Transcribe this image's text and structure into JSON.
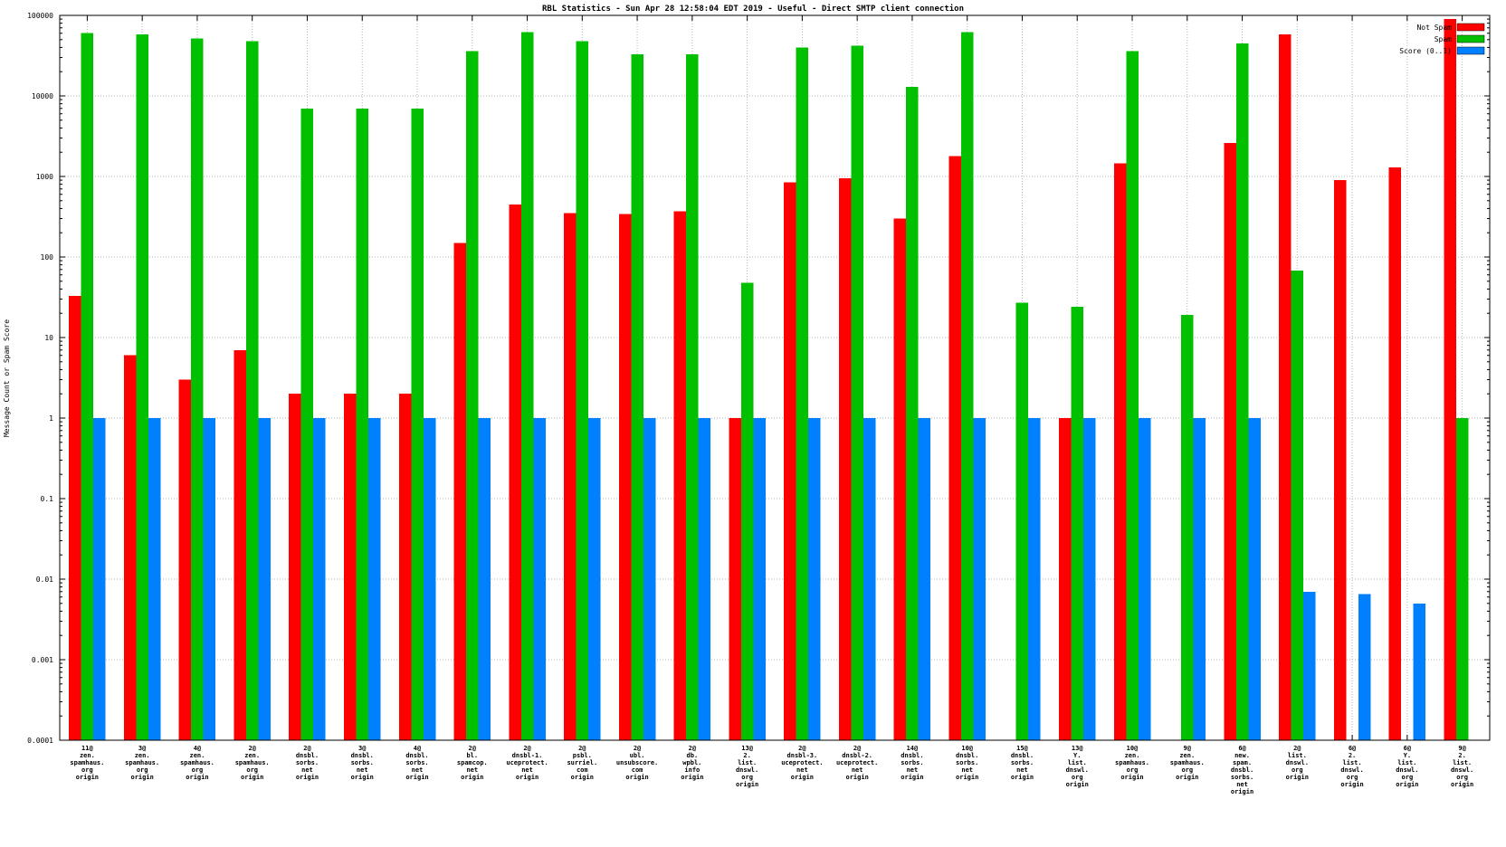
{
  "title": "RBL Statistics - Sun Apr 28 12:58:04 EDT 2019 - Useful - Direct SMTP client connection",
  "chart_data": {
    "type": "bar",
    "scale": "log",
    "title": "RBL Statistics - Sun Apr 28 12:58:04 EDT 2019 - Useful - Direct SMTP client connection",
    "ylabel": "Message Count or Spam Score",
    "ylim": [
      0.0001,
      100000
    ],
    "yticks": [
      "0.0001",
      "0.001",
      "0.01",
      "0.1",
      "1",
      "10",
      "100",
      "1000",
      "10000",
      "100000"
    ],
    "grid": true,
    "legend_position": "top-right",
    "categories": [
      [
        "11@",
        "zen.",
        "spamhaus.",
        "org",
        "origin"
      ],
      [
        "3@",
        "zen.",
        "spamhaus.",
        "org",
        "origin"
      ],
      [
        "4@",
        "zen.",
        "spamhaus.",
        "org",
        "origin"
      ],
      [
        "2@",
        "zen.",
        "spamhaus.",
        "org",
        "origin"
      ],
      [
        "2@",
        "dnsbl.",
        "sorbs.",
        "net",
        "origin"
      ],
      [
        "3@",
        "dnsbl.",
        "sorbs.",
        "net",
        "origin"
      ],
      [
        "4@",
        "dnsbl.",
        "sorbs.",
        "net",
        "origin"
      ],
      [
        "2@",
        "bl.",
        "spamcop.",
        "net",
        "origin"
      ],
      [
        "2@",
        "dnsbl-1.",
        "uceprotect.",
        "net",
        "origin"
      ],
      [
        "2@",
        "psbl.",
        "surriel.",
        "com",
        "origin"
      ],
      [
        "2@",
        "ubl.",
        "unsubscore.",
        "com",
        "origin"
      ],
      [
        "2@",
        "db.",
        "wpbl.",
        "info",
        "origin"
      ],
      [
        "13@",
        "2.",
        "list.",
        "dnswl.",
        "org",
        "origin"
      ],
      [
        "2@",
        "dnsbl-3.",
        "uceprotect.",
        "net",
        "origin"
      ],
      [
        "2@",
        "dnsbl-2.",
        "uceprotect.",
        "net",
        "origin"
      ],
      [
        "14@",
        "dnsbl.",
        "sorbs.",
        "net",
        "origin"
      ],
      [
        "10@",
        "dnsbl.",
        "sorbs.",
        "net",
        "origin"
      ],
      [
        "15@",
        "dnsbl.",
        "sorbs.",
        "net",
        "origin"
      ],
      [
        "13@",
        "Y.",
        "list.",
        "dnswl.",
        "org",
        "origin"
      ],
      [
        "10@",
        "zen.",
        "spamhaus.",
        "org",
        "origin"
      ],
      [
        "9@",
        "zen.",
        "spamhaus.",
        "org",
        "origin"
      ],
      [
        "6@",
        "new.",
        "spam.",
        "dnsbl.",
        "sorbs.",
        "net",
        "origin"
      ],
      [
        "2@",
        "list.",
        "dnswl.",
        "org",
        "origin"
      ],
      [
        "6@",
        "2.",
        "list.",
        "dnswl.",
        "org",
        "origin"
      ],
      [
        "6@",
        "Y.",
        "list.",
        "dnswl.",
        "org",
        "origin"
      ],
      [
        "9@",
        "2.",
        "list.",
        "dnswl.",
        "org",
        "origin"
      ]
    ],
    "series": [
      {
        "name": "Not Spam",
        "color": "#ff0000",
        "values": [
          33,
          6,
          3,
          7,
          2,
          2,
          2,
          150,
          450,
          350,
          340,
          370,
          1,
          850,
          950,
          300,
          1800,
          null,
          1,
          1450,
          null,
          2600,
          58000,
          900,
          1300,
          90000
        ]
      },
      {
        "name": "Spam",
        "color": "#00c000",
        "values": [
          60000,
          58000,
          52000,
          48000,
          7000,
          7000,
          7000,
          36000,
          62000,
          48000,
          33000,
          33000,
          48,
          40000,
          42000,
          13000,
          62000,
          27,
          24,
          36000,
          19,
          45000,
          68,
          null,
          null,
          1
        ]
      },
      {
        "name": "Score (0..1)",
        "color": "#0080ff",
        "values": [
          1,
          1,
          1,
          1,
          1,
          1,
          1,
          1,
          1,
          1,
          1,
          1,
          1,
          1,
          1,
          1,
          1,
          1,
          1,
          1,
          1,
          1,
          0.007,
          0.0065,
          0.005,
          null
        ]
      }
    ]
  }
}
